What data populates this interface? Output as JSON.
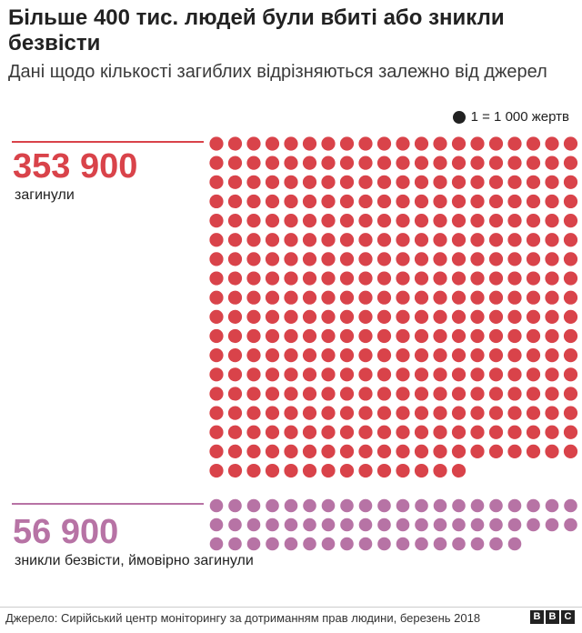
{
  "title": "Більше 400 тис. людей були вбиті або зникли безвісти",
  "subtitle": "Дані щодо кількості загиблих відрізняються залежно від джерел",
  "legend": {
    "label": "1 = 1 000 жертв"
  },
  "groups": [
    {
      "value_label": "353 900",
      "label": "загинули",
      "color": "#d9434a"
    },
    {
      "value_label": "56 900",
      "label": "зникли безвісти, ймовірно загинули",
      "color": "#b773a5"
    }
  ],
  "footer": {
    "source": "Джерело: Сирійський центр моніторингу за дотриманням прав людини, березень 2018",
    "brand": [
      "B",
      "B",
      "C"
    ]
  },
  "chart_data": {
    "type": "waffle",
    "unit": "1 = 1 000 жертв",
    "series": [
      {
        "name": "загинули",
        "value": 353900,
        "dots": 354
      },
      {
        "name": "зникли безвісти, ймовірно загинули",
        "value": 56900,
        "dots": 57
      }
    ]
  }
}
